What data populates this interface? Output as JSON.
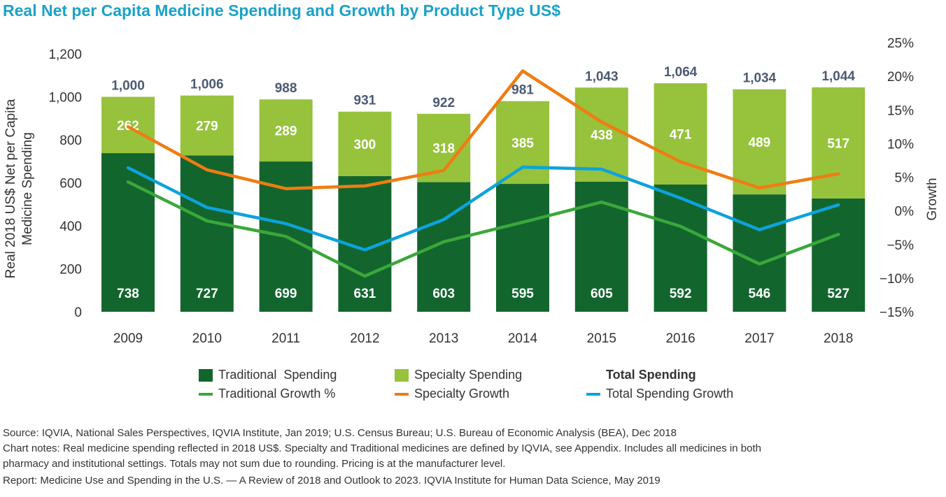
{
  "title": "Real Net per Capita Medicine Spending and Growth by Product Type US$",
  "colors": {
    "traditional": "#13652e",
    "specialty": "#97c23c",
    "traditional_growth": "#3aa83a",
    "specialty_growth": "#f07c13",
    "total_growth": "#0ca3dc",
    "total_label": "#4b5a73",
    "title": "#1aa2c9"
  },
  "chart_data": {
    "type": "bar",
    "stacked": true,
    "categories": [
      "2009",
      "2010",
      "2011",
      "2012",
      "2013",
      "2014",
      "2015",
      "2016",
      "2017",
      "2018"
    ],
    "ylabel": "Real 2018 US$ Net per Capita Medicine Spending",
    "ylabel_lines": [
      "Real 2018 US$ Net per Capita",
      "Medicine Spending"
    ],
    "y2label": "Growth",
    "ylim": [
      0,
      1200
    ],
    "y_ticks": [
      "0",
      "200",
      "400",
      "600",
      "800",
      "1,000",
      "1,200"
    ],
    "y2lim": [
      -15,
      25
    ],
    "y2_ticks": [
      "−15%",
      "−10%",
      "−5%",
      "0%",
      "5%",
      "10%",
      "15%",
      "20%",
      "25%"
    ],
    "series": [
      {
        "name": "Traditional  Spending",
        "values": [
          738,
          727,
          699,
          631,
          603,
          595,
          605,
          592,
          546,
          527
        ]
      },
      {
        "name": "Specialty Spending",
        "values": [
          262,
          279,
          289,
          300,
          318,
          385,
          438,
          471,
          489,
          517
        ]
      }
    ],
    "totals_name": "Total Spending",
    "totals": [
      1000,
      1006,
      988,
      931,
      922,
      981,
      1043,
      1064,
      1034,
      1044
    ],
    "totals_labels": [
      "1,000",
      "1,006",
      "988",
      "931",
      "922",
      "981",
      "1,043",
      "1,064",
      "1,034",
      "1,044"
    ],
    "growth_series": [
      {
        "name": "Traditional Growth %",
        "values": [
          4.3,
          -1.5,
          -3.8,
          -9.7,
          -4.6,
          -1.7,
          1.3,
          -2.3,
          -7.9,
          -3.5
        ]
      },
      {
        "name": "Specialty Growth",
        "values": [
          12.5,
          6.1,
          3.3,
          3.7,
          6.0,
          20.8,
          13.2,
          7.3,
          3.4,
          5.5
        ]
      },
      {
        "name": "Total Spending Growth",
        "values": [
          6.4,
          0.5,
          -1.9,
          -5.8,
          -1.3,
          6.5,
          6.2,
          1.9,
          -2.8,
          0.9
        ]
      }
    ],
    "legend_position": "bottom",
    "grid": false
  },
  "footnotes": [
    "Source: IQVIA, National Sales Perspectives, IQVIA Institute, Jan 2019; U.S. Census Bureau; U.S. Bureau of Economic Analysis (BEA), Dec 2018",
    "Chart notes: Real medicine spending reflected in 2018 US$. Specialty and Traditional medicines are defined by IQVIA, see Appendix. Includes all medicines in both",
    "pharmacy and institutional settings. Totals may not sum due to rounding. Pricing is at the manufacturer level.",
    "Report: Medicine Use and Spending in the U.S. — A Review of 2018 and Outlook to 2023. IQVIA Institute for Human Data Science, May 2019"
  ]
}
